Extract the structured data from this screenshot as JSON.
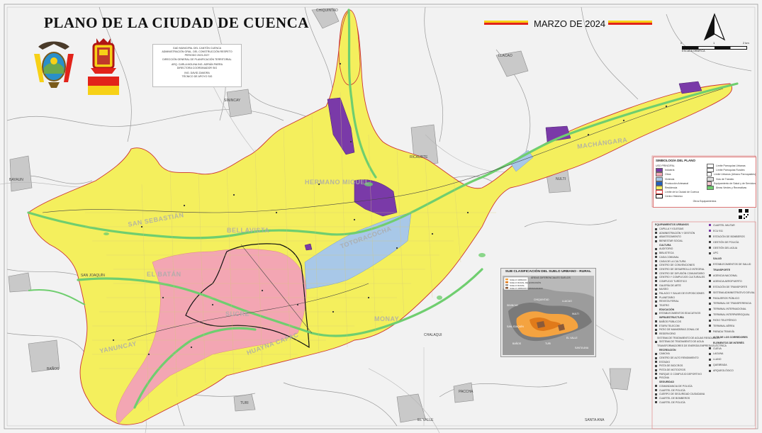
{
  "title": "PLANO  DE LA CIUDAD DE CUENCA",
  "date": "MARZO DE 2024",
  "colors": {
    "yellow_urban": "#f4ef5d",
    "pink_commercial": "#f3a6b3",
    "purple_industrial": "#7a3aa8",
    "blue_institutional": "#a8c8e8",
    "green_river": "#6fce6f",
    "flag_yellow": "#f7d117",
    "flag_red": "#e2231a"
  },
  "icons": {
    "north_arrow": "north-arrow-icon",
    "qr": "qr-code-icon",
    "ecuador_coat": "ecuador-coat-of-arms-icon",
    "cuenca_coat": "cuenca-coat-of-arms-icon"
  },
  "scale": {
    "zero": "0",
    "mid": "1",
    "end": "2 km",
    "label": "ESCALA GRÁFICA"
  },
  "credits": [
    "GAD MUNICIPAL DEL CANTÓN CUENCA",
    "ADMINISTRACIÓN GRAL. DEL CONSTRUCCIÓN RESPETO",
    "PERIODO 2023-2027",
    "DIRECCIÓN GENERAL DE PLANIFICACIÓN TERRITORIAL",
    "ARQ. CARLA MOLINA                  ING. ADRIÁN PARRA",
    "DIRECTORA                  COORDINADOR SIG",
    "ING. DAVID ZAMORA",
    "TÉCNICO DE APOYO SIG"
  ],
  "places": [
    "CHIQUINTAD",
    "LLACAO",
    "SININCAY",
    "RICAURTE",
    "NULTI",
    "BAYAUN",
    "SAN JOAQUÍN",
    "BAÑOS",
    "TURI",
    "EL VALLE",
    "PACCHA",
    "SANTA ANA",
    "CHALAQUI",
    "MACHÁNGARA",
    "SAN SEBASTIÁN",
    "EL BATÁN",
    "SUCRE",
    "YANUNCAY",
    "HUAYNA CAPAC",
    "MONAY",
    "BELLAVISTA",
    "HERMANO MIGUEL",
    "TOTORACOCHA"
  ],
  "legend_main": {
    "title": "SIMBOLOGÍA DEL PLANO",
    "col1_heading": "USO PRINCIPAL",
    "col1": [
      "Industria",
      "Otros",
      "Vivienda",
      "Producción Artesanal",
      "Residencia",
      "Límite de la Ciudad de Cuenca",
      "Centro Histórico"
    ],
    "col2": [
      "Límite Parroquias Urbanas",
      "Límite Parroquias Rurales",
      "Límite Urbanos (Urbano Parroquiales)",
      "Vías de Tránsito",
      "Equipamiento de Salud y de Servicios",
      "Áreas Verdes y Recreativas"
    ],
    "note": "Otros Equipamientos"
  },
  "legend_urban": {
    "heading": "EQUIPAMIENTOS URBANOS",
    "col1": [
      "CAPILLA Y IGLESIAS",
      "ADMINISTRACIÓN Y GESTIÓN",
      "ABASTECIMIENTO",
      "BIENESTAR SOCIAL",
      "CULTURA",
      "AUDITORIO",
      "BIBLIOTECA",
      "CASA COMUNAL",
      "CASA DE LA CULTURA",
      "CENTRO DE CONVENCIONES",
      "CENTRO DE DESARROLLO INTEGRAL",
      "CENTRO DE DIFUSIÓN COMUNITARIO",
      "CENTRO Y COMPLEJOS CULTURALES",
      "COMPLEJO TURÍSTICO",
      "GALERÍA DE ARTE",
      "MUSEO",
      "PALACIO Y SALAS DE EXPOSICIONES",
      "PLANETARIO",
      "REVISTA FERIAL",
      "TEATRO",
      "EDUCACIÓN",
      "ESTABLECIMIENTOS EDUCATIVOS",
      "INFRAESTRUCTURA",
      "BAÑOS PÚBLICOS",
      "ETAPA TELECOM",
      "PATIO DE MANIOBRAS ZONAL DE",
      "RESERVORIO",
      "SISTEMA DE TRATAMIENTO DE AGUAS RESIDUALES",
      "SISTEMA DE TRATAMIENTO DE AGUA",
      "TRANSFORMADORES DE ENERGÍA EMPRESA ELÉCTRICA",
      "RECREACIÓN",
      "CANCHA",
      "CENTRO DE ALTO RENDIMIENTO",
      "ESTADIO",
      "PISTA DE BICICROS",
      "PISTA DE MOTOCROS",
      "PARQUE O COMPLEJO DEPORTIVO",
      "PISCINA",
      "SEGURIDAD",
      "COMANDANCIA DE POLICÍA",
      "CUARTEL DE POLICÍA",
      "CUERPO DE SEGURIDAD CIUDADANA",
      "CUARTEL DE BOMBEROS",
      "CUARTEL DE POLICÍA"
    ],
    "col2": [
      "CUARTEL MILITAR",
      "ECU 911",
      "ESTACIÓN DE BOMBEROS",
      "GESTIÓN DE POLICÍA",
      "GESTIÓN DEL AGUA",
      "UPC",
      "SALUD",
      "ESTABLECIMIENTOS DE SALUD",
      "TRANSPORTE",
      "AGENCIA NACIONAL",
      "AGENCIA AEROPUERTO",
      "ESTACIÓN DE TRANSPORTE",
      "SISTEMA ADMINISTRATIVO DEVIAL",
      "PASAJEROS PÚBLICO",
      "TERMINAL DE TRANSFERENCIA",
      "TERMINAL INTERNACIONAL",
      "TERMINAL INTERPARROQUIAL",
      "PATIO TELEFÉRICO",
      "TERMINAL AÉREA",
      "PARADA TRANVÍA",
      "ALTA DE LOS CORREDORES",
      "ELEMENTOS DE INTERÉS",
      "CUEVA",
      "LAGUNA",
      "LLANO",
      "QUEBRADA",
      "ARQUEOLÓGICO"
    ]
  },
  "inset": {
    "title": "SUB CLASIFICACIÓN DEL SUELO URBANO - RURAL",
    "subtitle": "ÁREAS DIFERENCIALES SUELOS",
    "legend": [
      "SUELO URBANO",
      "SUELO RURAL DE EXPANSIÓN",
      "SUELO RURAL",
      "SUELO URBANO CONSOLIDADO"
    ],
    "places": [
      "SININCAY",
      "CHIQUINTAD",
      "LLACAO",
      "NULTI",
      "SAN JOAQUÍN",
      "BAÑOS",
      "TURI",
      "EL VALLE",
      "SANTA ANA"
    ]
  }
}
